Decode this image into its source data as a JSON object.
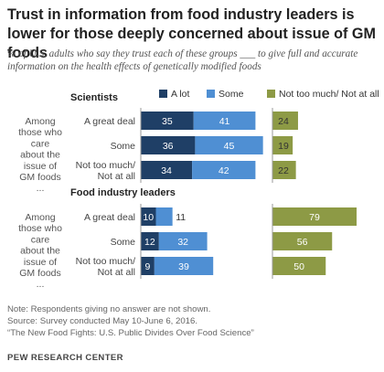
{
  "title": "Trust in information from food industry leaders is lower for those deeply concerned about issue of GM foods",
  "subtitle": "% of U.S. adults who say they trust each of these groups ___ to give full and accurate information on the health effects of genetically modified foods",
  "colors": {
    "a_lot": "#1f3f66",
    "some": "#4f8fd3",
    "not_too_much": "#8d9a45"
  },
  "chart_data": {
    "type": "bar",
    "legend": [
      "A lot",
      "Some",
      "Not too much/ Not at all"
    ],
    "side_label": "Among those who care about the issue of GM foods ...",
    "categories": [
      "A great deal",
      "Some",
      "Not too much/ Not at all"
    ],
    "panels": [
      {
        "title": "Scientists",
        "series": [
          {
            "name": "A lot",
            "values": [
              35,
              36,
              34
            ]
          },
          {
            "name": "Some",
            "values": [
              41,
              45,
              42
            ]
          },
          {
            "name": "Not too much/ Not at all",
            "values": [
              24,
              19,
              22
            ]
          }
        ]
      },
      {
        "title": "Food industry leaders",
        "series": [
          {
            "name": "A lot",
            "values": [
              10,
              12,
              9
            ]
          },
          {
            "name": "Some",
            "values": [
              11,
              32,
              39
            ]
          },
          {
            "name": "Not too much/ Not at all",
            "values": [
              79,
              56,
              50
            ]
          }
        ]
      }
    ]
  },
  "footer": {
    "note": "Note: Respondents giving no answer are not shown.",
    "source": "Source: Survey conducted May 10-June 6, 2016.",
    "report": "“The New Food Fights: U.S. Public Divides Over Food Science”",
    "org": "PEW RESEARCH CENTER"
  }
}
